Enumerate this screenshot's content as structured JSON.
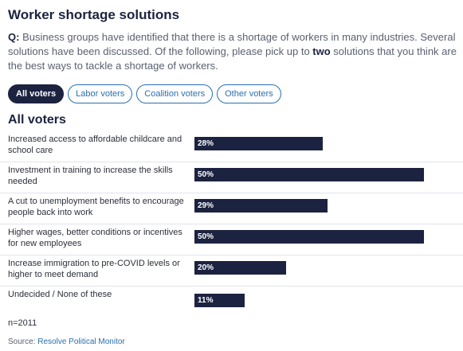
{
  "title": "Worker shortage solutions",
  "question": {
    "prefix": "Q:",
    "text_before": " Business groups have identified that there is a shortage of workers in many industries. Several solutions have been discussed. Of the following, please pick up to ",
    "emphasis": "two",
    "text_after": " solutions that you think are the best ways to tackle a shortage of workers."
  },
  "tabs": [
    {
      "label": "All voters",
      "active": true
    },
    {
      "label": "Labor voters",
      "active": false
    },
    {
      "label": "Coalition voters",
      "active": false
    },
    {
      "label": "Other voters",
      "active": false
    }
  ],
  "section_title": "All voters",
  "chart_data": {
    "type": "bar",
    "orientation": "horizontal",
    "categories": [
      "Increased access to affordable childcare and school care",
      "Investment in training to increase the skills needed",
      "A cut to unemployment benefits to encourage people back into work",
      "Higher wages, better conditions or incentives for new employees",
      "Increase immigration to pre-COVID levels or higher to meet demand",
      "Undecided / None of these"
    ],
    "values": [
      28,
      50,
      29,
      50,
      20,
      11
    ],
    "value_labels": [
      "28%",
      "50%",
      "29%",
      "50%",
      "20%",
      "11%"
    ],
    "unit": "%",
    "xlim": [
      0,
      50
    ],
    "bar_color": "#1c2340"
  },
  "sample_note": "n=2011",
  "source": {
    "label": "Source:",
    "link_text": "Resolve Political Monitor"
  },
  "colors": {
    "primary": "#1c2340",
    "link": "#2a6fb0"
  }
}
